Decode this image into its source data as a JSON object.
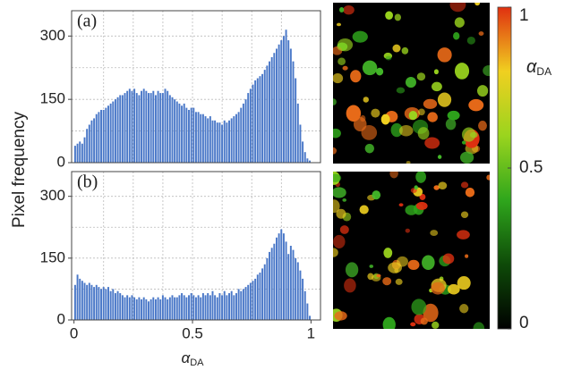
{
  "chart_data": [
    {
      "type": "histogram",
      "panel": "(a)",
      "ylabel": "Pixel frequency",
      "color": "#4a78c8",
      "bins": [
        0,
        0.01,
        0.02,
        0.03,
        0.04,
        0.05,
        0.06,
        0.07,
        0.08,
        0.09,
        0.1,
        0.11,
        0.12,
        0.13,
        0.14,
        0.15,
        0.16,
        0.17,
        0.18,
        0.19,
        0.2,
        0.21,
        0.22,
        0.23,
        0.24,
        0.25,
        0.26,
        0.27,
        0.28,
        0.29,
        0.3,
        0.31,
        0.32,
        0.33,
        0.34,
        0.35,
        0.36,
        0.37,
        0.38,
        0.39,
        0.4,
        0.41,
        0.42,
        0.43,
        0.44,
        0.45,
        0.46,
        0.47,
        0.48,
        0.49,
        0.5,
        0.51,
        0.52,
        0.53,
        0.54,
        0.55,
        0.56,
        0.57,
        0.58,
        0.59,
        0.6,
        0.61,
        0.62,
        0.63,
        0.64,
        0.65,
        0.66,
        0.67,
        0.68,
        0.69,
        0.7,
        0.71,
        0.72,
        0.73,
        0.74,
        0.75,
        0.76,
        0.77,
        0.78,
        0.79,
        0.8,
        0.81,
        0.82,
        0.83,
        0.84,
        0.85,
        0.86,
        0.87,
        0.88,
        0.89,
        0.9,
        0.91,
        0.92,
        0.93,
        0.94,
        0.95,
        0.96,
        0.97,
        0.98,
        0.99,
        1
      ],
      "values": [
        40,
        45,
        50,
        45,
        60,
        80,
        90,
        100,
        105,
        115,
        120,
        125,
        125,
        130,
        135,
        140,
        145,
        150,
        155,
        160,
        160,
        165,
        170,
        175,
        170,
        175,
        165,
        160,
        170,
        175,
        170,
        165,
        165,
        170,
        160,
        170,
        165,
        165,
        175,
        170,
        160,
        155,
        150,
        145,
        140,
        135,
        140,
        130,
        125,
        130,
        130,
        120,
        120,
        115,
        115,
        110,
        105,
        110,
        100,
        100,
        95,
        95,
        90,
        100,
        95,
        100,
        105,
        110,
        115,
        120,
        130,
        140,
        150,
        165,
        175,
        185,
        195,
        200,
        205,
        210,
        220,
        230,
        240,
        250,
        260,
        270,
        280,
        290,
        300,
        315,
        290,
        270,
        240,
        200,
        140,
        90,
        50,
        25,
        10,
        5
      ],
      "xlim": [
        -0.01,
        1.04
      ],
      "ylim": [
        0,
        360
      ],
      "yticks": [
        0,
        150,
        300
      ],
      "xgrid": [
        0.125,
        0.25,
        0.375,
        0.5,
        0.625,
        0.75,
        0.875
      ],
      "ygrid": [
        75,
        150,
        225,
        300
      ]
    },
    {
      "type": "histogram",
      "panel": "(b)",
      "xlabel": {
        "symbol": "α",
        "subscript": "DA"
      },
      "color": "#4a78c8",
      "bins": [
        0,
        0.01,
        0.02,
        0.03,
        0.04,
        0.05,
        0.06,
        0.07,
        0.08,
        0.09,
        0.1,
        0.11,
        0.12,
        0.13,
        0.14,
        0.15,
        0.16,
        0.17,
        0.18,
        0.19,
        0.2,
        0.21,
        0.22,
        0.23,
        0.24,
        0.25,
        0.26,
        0.27,
        0.28,
        0.29,
        0.3,
        0.31,
        0.32,
        0.33,
        0.34,
        0.35,
        0.36,
        0.37,
        0.38,
        0.39,
        0.4,
        0.41,
        0.42,
        0.43,
        0.44,
        0.45,
        0.46,
        0.47,
        0.48,
        0.49,
        0.5,
        0.51,
        0.52,
        0.53,
        0.54,
        0.55,
        0.56,
        0.57,
        0.58,
        0.59,
        0.6,
        0.61,
        0.62,
        0.63,
        0.64,
        0.65,
        0.66,
        0.67,
        0.68,
        0.69,
        0.7,
        0.71,
        0.72,
        0.73,
        0.74,
        0.75,
        0.76,
        0.77,
        0.78,
        0.79,
        0.8,
        0.81,
        0.82,
        0.83,
        0.84,
        0.85,
        0.86,
        0.87,
        0.88,
        0.89,
        0.9,
        0.91,
        0.92,
        0.93,
        0.94,
        0.95,
        0.96,
        0.97,
        0.98,
        0.99,
        1
      ],
      "values": [
        85,
        110,
        100,
        95,
        90,
        85,
        90,
        85,
        80,
        85,
        80,
        75,
        80,
        75,
        80,
        70,
        75,
        65,
        70,
        65,
        60,
        55,
        60,
        55,
        60,
        55,
        50,
        55,
        50,
        55,
        50,
        45,
        50,
        55,
        50,
        55,
        50,
        60,
        55,
        50,
        55,
        60,
        55,
        55,
        60,
        65,
        60,
        55,
        60,
        65,
        60,
        55,
        60,
        55,
        65,
        60,
        65,
        60,
        70,
        60,
        55,
        65,
        60,
        70,
        60,
        65,
        70,
        60,
        65,
        75,
        70,
        75,
        80,
        85,
        90,
        95,
        100,
        110,
        115,
        125,
        135,
        150,
        165,
        175,
        185,
        200,
        210,
        220,
        210,
        190,
        160,
        180,
        170,
        150,
        140,
        120,
        100,
        70,
        40,
        10
      ],
      "xlim": [
        -0.01,
        1.04
      ],
      "ylim": [
        0,
        360
      ],
      "yticks": [
        0,
        150,
        300
      ],
      "xticks": [
        0,
        0.5,
        1
      ],
      "xgrid": [
        0.125,
        0.25,
        0.375,
        0.5,
        0.625,
        0.75,
        0.875
      ],
      "ygrid": [
        75,
        150,
        225,
        300
      ]
    }
  ],
  "colorbar": {
    "label": {
      "symbol": "α",
      "subscript": "DA"
    },
    "lim": [
      0,
      1
    ],
    "ticks": [
      0,
      0.5,
      1
    ],
    "colors": [
      "#000000",
      "#0e4a08",
      "#2fa61c",
      "#9ad41e",
      "#f0d020",
      "#e03010"
    ]
  }
}
